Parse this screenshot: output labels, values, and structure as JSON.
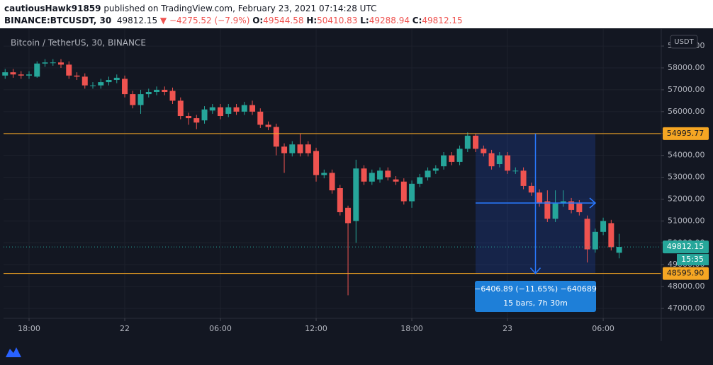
{
  "header": {
    "user": "cautiousHawk91859",
    "published": " published on TradingView.com, February 23, 2021 07:14:28 UTC",
    "symbol": "BINANCE:BTCUSDT, 30",
    "arrow": "▼",
    "change": "−4275.52 (−7.9%)",
    "o": "O:",
    "h": "H:",
    "l": "L:",
    "c": "C:"
  },
  "chart_data": {
    "type": "candlestick",
    "title": "Bitcoin / TetherUS, 30, BINANCE",
    "currency": "USDT",
    "x": [
      16.5,
      17,
      17.5,
      18,
      18.5,
      19,
      19.5,
      20,
      20.5,
      21,
      21.5,
      22,
      22.5,
      23,
      23.5,
      24,
      24.5,
      25,
      25.5,
      26,
      26.5,
      27,
      27.5,
      28,
      28.5,
      29,
      29.5,
      30,
      30.5,
      31,
      31.5,
      32,
      32.5,
      33,
      33.5,
      34,
      34.5,
      35,
      35.5,
      36,
      36.5,
      37,
      37.5,
      38,
      38.5,
      39,
      39.5,
      40,
      40.5,
      41,
      41.5,
      42,
      42.5,
      43,
      43.5,
      44,
      44.5,
      45,
      45.5,
      46,
      46.5,
      47,
      47.5,
      48,
      48.5,
      49,
      49.5,
      50,
      50.5,
      51,
      51.5,
      52,
      52.5,
      53,
      53.5,
      54,
      54.5,
      55
    ],
    "xlim": [
      16.4,
      57.64
    ],
    "xticks": [
      {
        "value": 18,
        "label": "18:00"
      },
      {
        "value": 24,
        "label": "22"
      },
      {
        "value": 30,
        "label": "06:00"
      },
      {
        "value": 36,
        "label": "12:00"
      },
      {
        "value": 42,
        "label": "18:00"
      },
      {
        "value": 48,
        "label": "23"
      },
      {
        "value": 54,
        "label": "06:00"
      }
    ],
    "ylim": [
      46547,
      59650
    ],
    "yticks": [
      {
        "value": 47000,
        "label": "47000.00"
      },
      {
        "value": 48000,
        "label": "48000.00"
      },
      {
        "value": 49000,
        "label": "49000.00"
      },
      {
        "value": 50000,
        "label": "50000.00"
      },
      {
        "value": 51000,
        "label": "51000.00"
      },
      {
        "value": 52000,
        "label": "52000.00"
      },
      {
        "value": 53000,
        "label": "53000.00"
      },
      {
        "value": 54000,
        "label": "54000.00"
      },
      {
        "value": 55000,
        "label": "55000.00"
      },
      {
        "value": 56000,
        "label": "56000.00"
      },
      {
        "value": 57000,
        "label": "57000.00"
      },
      {
        "value": 58000,
        "label": "58000.00"
      },
      {
        "value": 59000,
        "label": "59000.00"
      }
    ],
    "grid": true,
    "series": [
      {
        "name": "BTCUSDT",
        "up_color": "#26a69a",
        "down_color": "#ef5350",
        "open": [
          57650,
          57800,
          57700,
          57650,
          57600,
          58200,
          58250,
          58250,
          58150,
          57650,
          57600,
          57200,
          57200,
          57350,
          57450,
          57500,
          56800,
          56300,
          56800,
          56900,
          57000,
          56950,
          56500,
          55800,
          55700,
          55600,
          56050,
          56200,
          55900,
          56200,
          56000,
          56300,
          56000,
          55400,
          55300,
          54400,
          54100,
          54500,
          54500,
          54200,
          53100,
          53200,
          52500,
          51600,
          51000,
          53400,
          52800,
          52900,
          53300,
          52900,
          52800,
          51900,
          52700,
          53000,
          53300,
          53500,
          54000,
          53700,
          54300,
          54900,
          54300,
          54100,
          53600,
          54000,
          53300,
          53300,
          52600,
          52300,
          51900,
          51100,
          51800,
          51900,
          51800,
          51100,
          49700,
          50500,
          50900,
          49544.58
        ],
        "high": [
          57950,
          57950,
          57850,
          57850,
          58300,
          58400,
          58400,
          58400,
          58300,
          57800,
          57750,
          57350,
          57500,
          57600,
          57700,
          57650,
          56950,
          57000,
          57050,
          57150,
          57150,
          57100,
          56650,
          55950,
          55850,
          56250,
          56350,
          56350,
          56350,
          56350,
          56450,
          56500,
          56150,
          55550,
          55450,
          54550,
          54650,
          55000,
          54650,
          54350,
          53350,
          53350,
          52650,
          51700,
          53800,
          53550,
          53350,
          53450,
          53450,
          53050,
          52950,
          52850,
          53150,
          53450,
          53550,
          54150,
          54150,
          54450,
          55050,
          55000,
          54450,
          54250,
          54150,
          54150,
          53450,
          53450,
          52750,
          52450,
          52400,
          52400,
          52400,
          52050,
          51950,
          51250,
          50650,
          51150,
          51050,
          50410.83
        ],
        "low": [
          57500,
          57550,
          57500,
          57500,
          57550,
          58050,
          58100,
          58000,
          57500,
          57450,
          57050,
          57050,
          57050,
          57200,
          57300,
          56650,
          56150,
          55900,
          56650,
          56750,
          56750,
          56350,
          55650,
          55400,
          55200,
          55450,
          55900,
          55650,
          55750,
          55850,
          55850,
          55850,
          55250,
          55150,
          54000,
          53200,
          53950,
          53950,
          53950,
          52800,
          52950,
          52250,
          51250,
          47600,
          50000,
          52650,
          52650,
          52750,
          52850,
          52650,
          51750,
          51600,
          52550,
          52850,
          53150,
          53350,
          53550,
          53550,
          54150,
          54150,
          53950,
          53350,
          53450,
          53150,
          53150,
          52450,
          52150,
          51650,
          50950,
          50950,
          51650,
          51350,
          51250,
          49100,
          49550,
          50350,
          49650,
          49288.94
        ],
        "close": [
          57800,
          57700,
          57650,
          57700,
          58200,
          58250,
          58250,
          58150,
          57650,
          57600,
          57200,
          57200,
          57350,
          57450,
          57550,
          56800,
          56300,
          56800,
          56900,
          57000,
          56900,
          56500,
          55800,
          55700,
          55500,
          56100,
          56200,
          55800,
          56200,
          56000,
          56300,
          56000,
          55400,
          55300,
          54400,
          54100,
          54500,
          54100,
          54100,
          53100,
          53200,
          52400,
          51400,
          50900,
          53400,
          52800,
          53200,
          53300,
          53000,
          52800,
          51900,
          52700,
          53000,
          53300,
          53400,
          54000,
          53700,
          54300,
          54900,
          54300,
          54100,
          53500,
          54000,
          53300,
          53300,
          52600,
          52300,
          51800,
          51100,
          51800,
          51900,
          51500,
          51400,
          49700,
          50500,
          51000,
          49800,
          49812.15
        ]
      }
    ],
    "hlines": [
      {
        "value": 54995.77,
        "color": "#f5a623"
      },
      {
        "value": 48595.9,
        "label": "48595.90",
        "color": "#f5a623"
      }
    ],
    "countdown": "15:35",
    "measure": {
      "text": "−6406.89 (−11.65%) −640689",
      "sub": "15 bars, 7h 30m"
    },
    "brand": "TradingView"
  }
}
